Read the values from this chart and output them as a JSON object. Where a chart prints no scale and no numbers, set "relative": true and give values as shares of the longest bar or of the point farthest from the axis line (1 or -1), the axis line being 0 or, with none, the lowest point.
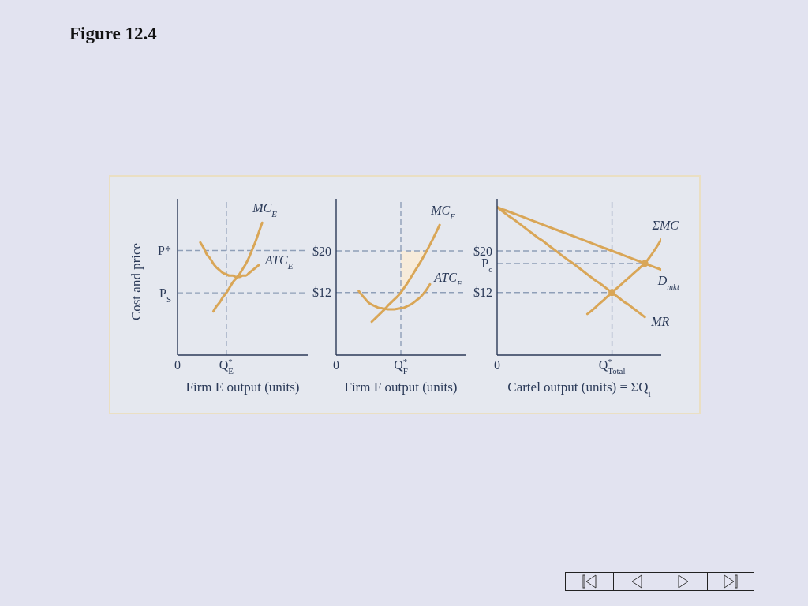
{
  "chart_data": [
    {
      "type": "line",
      "title": "Figure 12.4",
      "xlabel": "Firm E output (units)",
      "ylabel": "Cost and price",
      "relative": true,
      "marker": "none",
      "categories": [
        "0",
        null,
        null,
        null,
        null,
        null,
        null,
        null,
        null,
        null,
        null,
        null,
        null,
        null,
        null,
        "Q$^{*}$$_{E}$",
        null,
        null,
        null,
        null,
        null,
        null,
        null,
        null,
        null,
        null,
        null,
        null,
        null,
        null,
        null,
        null,
        null,
        null,
        null,
        null,
        null,
        null,
        null,
        null,
        null
      ],
      "ref_lines": [
        {
          "axis": "y",
          "value": 0.79,
          "label": "P*",
          "color": "#8f9fb8",
          "line_style": "dashed"
        },
        {
          "axis": "y",
          "value": 0.47,
          "label": "P$_{S}$",
          "color": "#8f9fb8",
          "line_style": "dashed"
        },
        {
          "axis": "x",
          "value": "Q$^{*}$$_{E}$",
          "color": "#8f9fb8",
          "line_style": "dashed"
        }
      ],
      "series": [
        {
          "name": "MC$_{E}$",
          "color": "#d9a657",
          "values": [
            null,
            null,
            null,
            null,
            null,
            null,
            null,
            null,
            null,
            null,
            null,
            0.33,
            0.37,
            0.4,
            0.44,
            0.47,
            0.51,
            0.55,
            0.58,
            0.61,
            0.65,
            0.69,
            0.74,
            0.8,
            0.86,
            0.93,
            1,
            null,
            null,
            null,
            null,
            null,
            null,
            null,
            null,
            null,
            null,
            null,
            null,
            null,
            null
          ]
        },
        {
          "name": "ATC$_{E}$",
          "color": "#d9a657",
          "values": [
            null,
            null,
            null,
            null,
            null,
            null,
            null,
            0.85,
            0.81,
            0.76,
            0.73,
            0.69,
            0.66,
            0.64,
            0.62,
            0.61,
            0.6,
            0.6,
            0.59,
            0.59,
            0.6,
            0.6,
            0.62,
            0.64,
            0.66,
            0.68,
            null,
            null,
            null,
            null,
            null,
            null,
            null,
            null,
            null,
            null,
            null,
            null,
            null,
            null,
            null
          ]
        }
      ]
    },
    {
      "type": "line",
      "xlabel": "Firm F output (units)",
      "ylim": [
        0,
        30
      ],
      "yticks": [
        {
          "value": 20,
          "label": "$20"
        },
        {
          "value": 12,
          "label": "$12"
        }
      ],
      "marker": "none",
      "categories": [
        "0",
        null,
        null,
        null,
        null,
        null,
        null,
        null,
        null,
        null,
        null,
        null,
        null,
        null,
        null,
        null,
        null,
        null,
        null,
        null,
        "Q$^{*}$$_{F}$",
        null,
        null,
        null,
        null,
        null,
        null,
        null,
        null,
        null,
        null,
        null,
        null,
        null,
        null,
        null,
        null,
        null,
        null,
        null,
        null
      ],
      "ref_lines": [
        {
          "axis": "y",
          "value": 20,
          "color": "#8f9fb8",
          "line_style": "dashed"
        },
        {
          "axis": "y",
          "value": 12,
          "color": "#8f9fb8",
          "line_style": "dashed"
        },
        {
          "axis": "x",
          "value": "Q$^{*}$$_{F}$",
          "color": "#8f9fb8",
          "line_style": "dashed"
        }
      ],
      "series": [
        {
          "name": "MC$_{F}$",
          "color": "#d9a657",
          "values": [
            null,
            null,
            null,
            null,
            null,
            null,
            null,
            null,
            null,
            null,
            null,
            6.4,
            7,
            7.6,
            8.2,
            8.8,
            9.5,
            10.1,
            10.7,
            11.3,
            12,
            12.9,
            13.8,
            14.8,
            15.8,
            16.8,
            17.8,
            18.9,
            20,
            21.2,
            22.4,
            23.7,
            25,
            null,
            null,
            null,
            null,
            null,
            null,
            null,
            null
          ],
          "lower": [
            null,
            null,
            null,
            null,
            null,
            null,
            null,
            null,
            null,
            null,
            null,
            null,
            null,
            null,
            null,
            null,
            null,
            null,
            null,
            null,
            12,
            12.9,
            13.8,
            14.8,
            15.8,
            16.8,
            17.8,
            18.9,
            20,
            null,
            null,
            null,
            null,
            null,
            null,
            null,
            null,
            null,
            null,
            null,
            null
          ],
          "upper": [
            null,
            null,
            null,
            null,
            null,
            null,
            null,
            null,
            null,
            null,
            null,
            null,
            null,
            null,
            null,
            null,
            null,
            null,
            null,
            null,
            20,
            20,
            20,
            20,
            20,
            20,
            20,
            20,
            20,
            null,
            null,
            null,
            null,
            null,
            null,
            null,
            null,
            null,
            null,
            null,
            null
          ]
        },
        {
          "name": "ATC$_{F}$",
          "color": "#d9a657",
          "values": [
            null,
            null,
            null,
            null,
            null,
            null,
            null,
            12.3,
            11.5,
            10.8,
            10.1,
            9.7,
            9.4,
            9.1,
            9,
            8.9,
            8.8,
            8.8,
            8.8,
            8.9,
            9,
            9.1,
            9.4,
            9.7,
            10.1,
            10.6,
            11.1,
            11.8,
            12.6,
            13.6,
            null,
            null,
            null,
            null,
            null,
            null,
            null,
            null,
            null,
            null,
            null
          ]
        }
      ]
    },
    {
      "type": "line",
      "xlabel": "Cartel output (units) = ΣQ$_{i}$",
      "ylim": [
        0,
        30
      ],
      "yticks": [
        {
          "value": 20,
          "label": "$20"
        },
        {
          "value": 17.6,
          "label": "P$_{c}$"
        },
        {
          "value": 12,
          "label": "$12"
        }
      ],
      "marker": "none",
      "categories": [
        "0",
        null,
        null,
        null,
        null,
        null,
        null,
        null,
        null,
        null,
        null,
        null,
        null,
        null,
        null,
        null,
        null,
        null,
        null,
        null,
        null,
        null,
        null,
        null,
        null,
        null,
        null,
        null,
        "Q$^{*}$$_{Total}$",
        null,
        null,
        null,
        null,
        null,
        null,
        null,
        null,
        null,
        null,
        null,
        null
      ],
      "ref_lines": [
        {
          "axis": "x",
          "value": "Q$^{*}$$_{Total}$",
          "color": "#8f9fb8",
          "line_style": "dashed"
        }
      ],
      "series": [
        {
          "color": "#8f9fb8",
          "line_style": "dashed",
          "values": [
            20,
            20,
            20,
            20,
            20,
            20,
            20,
            20,
            20,
            20,
            20,
            20,
            20,
            20,
            20,
            20,
            20,
            20,
            20,
            20,
            20,
            20,
            20,
            20,
            20,
            20,
            20,
            20,
            20,
            null,
            null,
            null,
            null,
            null,
            null,
            null,
            null,
            null,
            null,
            null,
            null
          ]
        },
        {
          "color": "#8f9fb8",
          "line_style": "dashed",
          "values": [
            17.6,
            17.6,
            17.6,
            17.6,
            17.6,
            17.6,
            17.6,
            17.6,
            17.6,
            17.6,
            17.6,
            17.6,
            17.6,
            17.6,
            17.6,
            17.6,
            17.6,
            17.6,
            17.6,
            17.6,
            17.6,
            17.6,
            17.6,
            17.6,
            17.6,
            17.6,
            17.6,
            17.6,
            17.6,
            17.6,
            17.6,
            17.6,
            17.6,
            17.6,
            17.6,
            17.6,
            17.6,
            null,
            null,
            null,
            null
          ]
        },
        {
          "color": "#8f9fb8",
          "line_style": "dashed",
          "values": [
            12,
            12,
            12,
            12,
            12,
            12,
            12,
            12,
            12,
            12,
            12,
            12,
            12,
            12,
            12,
            12,
            12,
            12,
            12,
            12,
            12,
            12,
            12,
            12,
            12,
            12,
            12,
            12,
            12,
            null,
            null,
            null,
            null,
            null,
            null,
            null,
            null,
            null,
            null,
            null,
            null
          ]
        },
        {
          "name": "ΣMC",
          "color": "#d9a657",
          "values": [
            null,
            null,
            null,
            null,
            null,
            null,
            null,
            null,
            null,
            null,
            null,
            null,
            null,
            null,
            null,
            null,
            null,
            null,
            null,
            null,
            null,
            null,
            7.9,
            8.5,
            9.2,
            9.9,
            10.6,
            11.3,
            12,
            12.7,
            13.4,
            14.1,
            14.8,
            15.5,
            16.2,
            16.9,
            17.6,
            18.6,
            19.7,
            20.9,
            22.2
          ]
        },
        {
          "name": "D$_{mkt}$",
          "color": "#d9a657",
          "values": [
            28.4,
            28.1,
            27.8,
            27.5,
            27.2,
            26.9,
            26.6,
            26.3,
            26,
            25.7,
            25.4,
            25.1,
            24.8,
            24.5,
            24.2,
            23.9,
            23.6,
            23.3,
            23,
            22.7,
            22.4,
            22.1,
            21.8,
            21.5,
            21.2,
            20.9,
            20.6,
            20.3,
            20,
            19.7,
            19.4,
            19.1,
            18.8,
            18.5,
            18.2,
            17.9,
            17.6,
            17.3,
            17,
            16.7,
            16.4
          ]
        },
        {
          "name": "MR",
          "color": "#d9a657",
          "values": [
            28.4,
            27.8,
            27.2,
            26.6,
            26.1,
            25.5,
            24.9,
            24.3,
            23.7,
            23.1,
            22.5,
            22,
            21.4,
            20.8,
            20.2,
            19.6,
            19,
            18.4,
            17.9,
            17.3,
            16.7,
            16.1,
            15.5,
            14.9,
            14.3,
            13.8,
            13.2,
            12.6,
            12,
            11.4,
            10.8,
            10.2,
            9.7,
            9.1,
            8.5,
            7.9,
            7.3,
            null,
            null,
            null,
            null
          ]
        },
        {
          "type": "scatter",
          "color": "#d9a657",
          "marker": "circle",
          "values": [
            null,
            null,
            null,
            null,
            null,
            null,
            null,
            null,
            null,
            null,
            null,
            null,
            null,
            null,
            null,
            null,
            null,
            null,
            null,
            null,
            null,
            null,
            null,
            null,
            null,
            null,
            null,
            null,
            12,
            null,
            null,
            null,
            null,
            null,
            null,
            null,
            17.6,
            null,
            null,
            null,
            null
          ]
        }
      ]
    }
  ]
}
